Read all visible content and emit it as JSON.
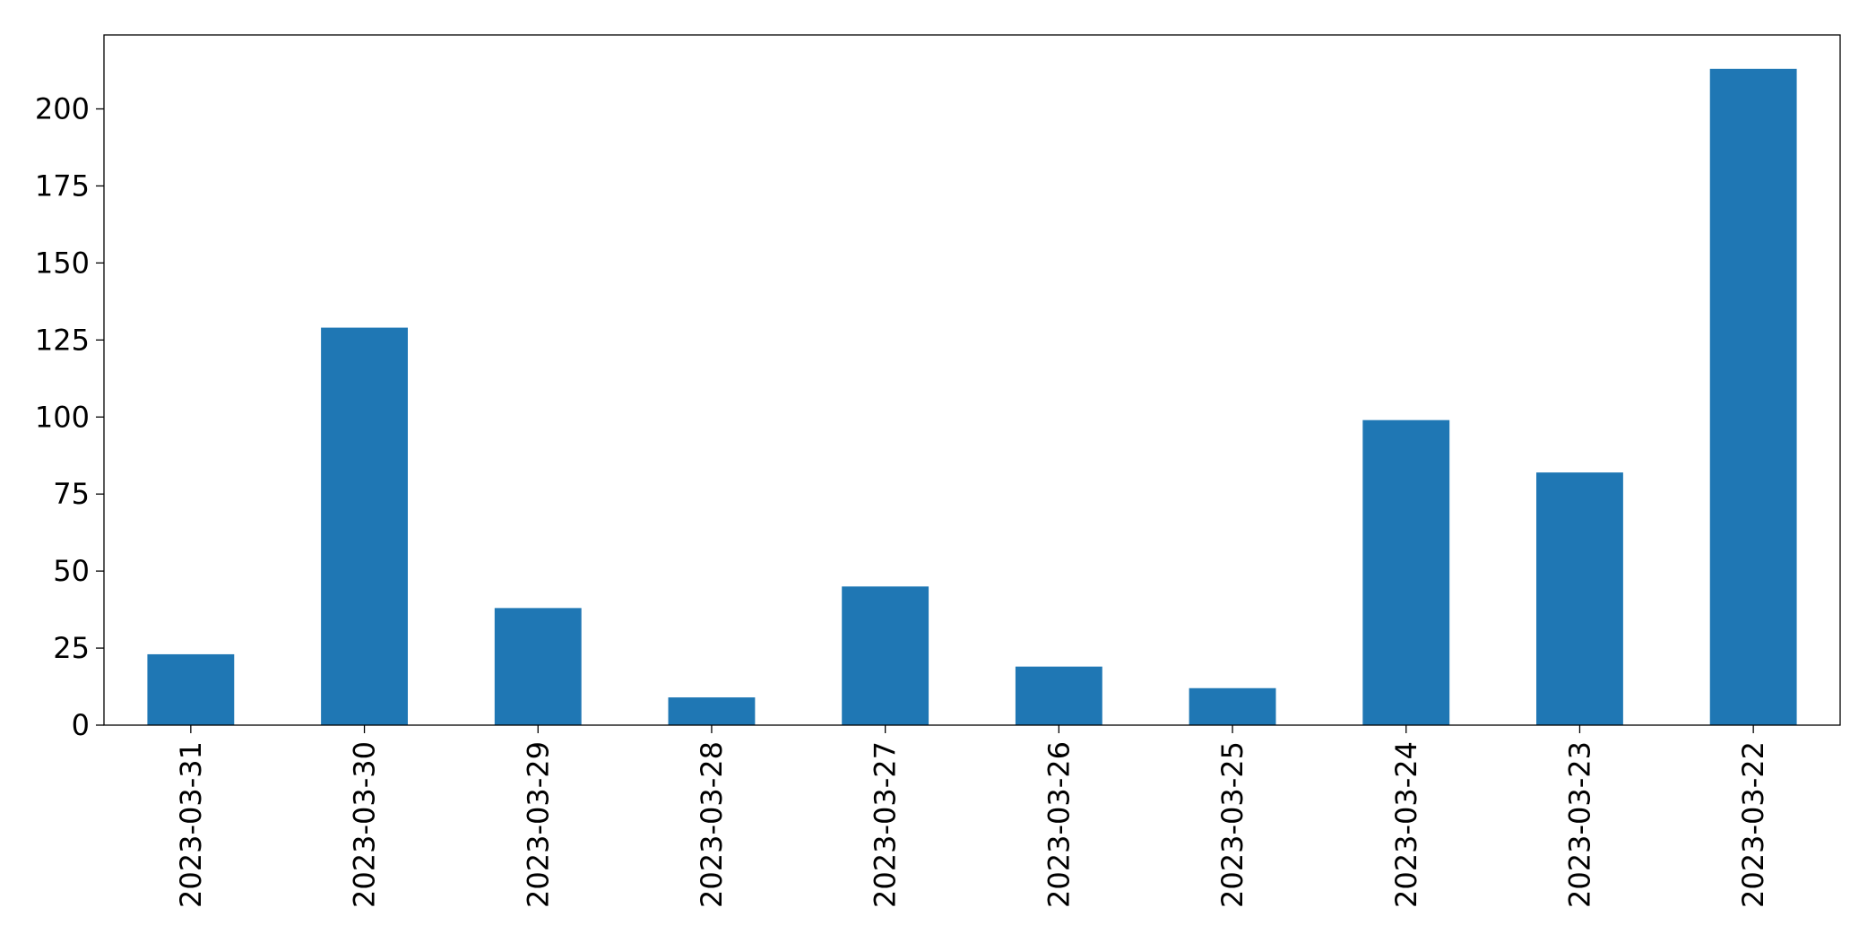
{
  "chart_data": {
    "type": "bar",
    "categories": [
      "2023-03-31",
      "2023-03-30",
      "2023-03-29",
      "2023-03-28",
      "2023-03-27",
      "2023-03-26",
      "2023-03-25",
      "2023-03-24",
      "2023-03-23",
      "2023-03-22"
    ],
    "values": [
      23,
      129,
      38,
      9,
      45,
      19,
      12,
      99,
      82,
      213
    ],
    "color": "#1f77b4",
    "ylim": [
      0,
      224
    ],
    "yticks": [
      0,
      25,
      50,
      75,
      100,
      125,
      150,
      175,
      200
    ],
    "grid": false
  }
}
